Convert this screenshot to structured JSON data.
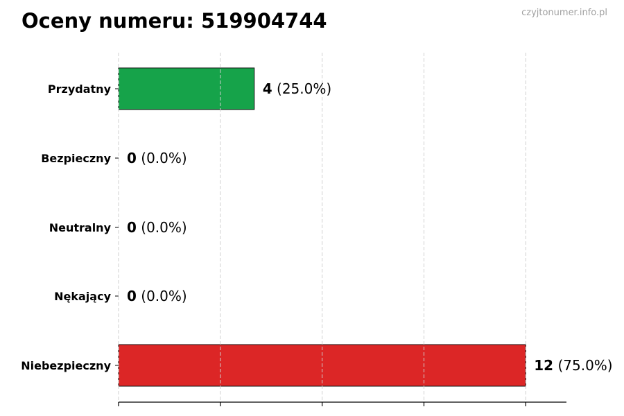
{
  "chart_data": {
    "type": "bar",
    "orientation": "horizontal",
    "title": "Oceny numeru: 519904744",
    "watermark": "czyjtonumer.info.pl",
    "categories": [
      "Przydatny",
      "Bezpieczny",
      "Neutralny",
      "Nękający",
      "Niebezpieczny"
    ],
    "values": [
      4,
      0,
      0,
      0,
      12
    ],
    "percent_labels": [
      "(25.0%)",
      "(0.0%)",
      "(0.0%)",
      "(0.0%)",
      "(75.0%)"
    ],
    "colors": [
      "#16a34a",
      "#16a34a",
      "#9ca3af",
      "#dc2626",
      "#dc2626"
    ],
    "xlim": [
      0,
      13.2
    ],
    "xticks": [
      0,
      3,
      6,
      9,
      12
    ],
    "xtick_labels_shown": false,
    "grid": "vertical dashed",
    "legend": "none"
  }
}
